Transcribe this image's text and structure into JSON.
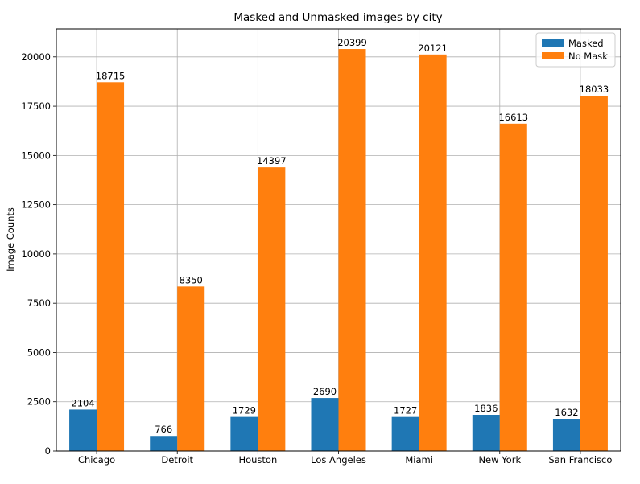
{
  "chart_data": {
    "type": "bar",
    "title": "Masked and Unmasked images by city",
    "xlabel": "",
    "ylabel": "Image Counts",
    "categories": [
      "Chicago",
      "Detroit",
      "Houston",
      "Los Angeles",
      "Miami",
      "New York",
      "San Francisco"
    ],
    "series": [
      {
        "name": "Masked",
        "color": "#1f77b4",
        "values": [
          2104,
          766,
          1729,
          2690,
          1727,
          1836,
          1632
        ]
      },
      {
        "name": "No Mask",
        "color": "#ff7f0e",
        "values": [
          18715,
          8350,
          14397,
          20399,
          20121,
          16613,
          18033
        ]
      }
    ],
    "ylim": [
      0,
      21420
    ],
    "yticks": [
      0,
      2500,
      5000,
      7500,
      10000,
      12500,
      15000,
      17500,
      20000
    ],
    "grid": true,
    "legend_position": "top-right",
    "data_labels": true
  }
}
